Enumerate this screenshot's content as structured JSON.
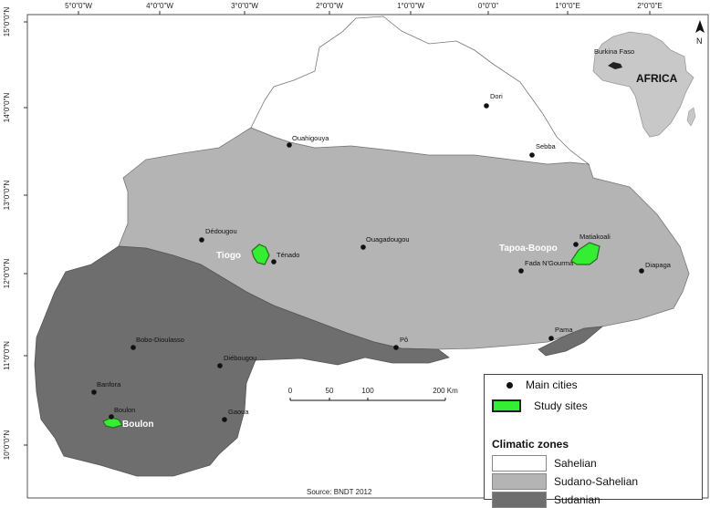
{
  "longitude_ticks": [
    "5°0\"0\"W",
    "4°0\"0\"W",
    "3°0\"0\"W",
    "2°0\"0\"W",
    "1°0\"0\"W",
    "0°0\"0\"",
    "1°0\"0\"E",
    "2°0\"0\"E"
  ],
  "latitude_ticks": [
    "15°0\"0\"N",
    "14°0\"0\"N",
    "13°0\"0\"N",
    "12°0\"0\"N",
    "11°0\"0\"N",
    "10°0\"0\"N"
  ],
  "cities": [
    {
      "name": "Dori"
    },
    {
      "name": "Ouahigouya"
    },
    {
      "name": "Sebba"
    },
    {
      "name": "Dédougou"
    },
    {
      "name": "Ténado"
    },
    {
      "name": "Ouagadougou"
    },
    {
      "name": "Matiakoali"
    },
    {
      "name": "Fada N'Gourma"
    },
    {
      "name": "Diapaga"
    },
    {
      "name": "Bobo-Dioulasso"
    },
    {
      "name": "Diébougou"
    },
    {
      "name": "Pô"
    },
    {
      "name": "Pama"
    },
    {
      "name": "Banfora"
    },
    {
      "name": "Boulon"
    },
    {
      "name": "Gaoua"
    }
  ],
  "study_sites": [
    "Tiogo",
    "Tapoa-Boopo",
    "Boulon"
  ],
  "inset": {
    "country": "Burkina Faso",
    "continent": "AFRICA"
  },
  "north_arrow": "N",
  "scale_bar": {
    "labels": [
      "0",
      "50",
      "100",
      "200 Km"
    ]
  },
  "legend": {
    "main_cities": "Main cities",
    "study_sites": "Study sites",
    "climatic_zones": "Climatic zones",
    "zones": [
      {
        "name": "Sahelian",
        "color": "#ffffff"
      },
      {
        "name": "Sudano-Sahelian",
        "color": "#b4b4b4"
      },
      {
        "name": "Sudanian",
        "color": "#6e6e6e"
      }
    ]
  },
  "source": "Source: BNDT 2012",
  "colors": {
    "study_site": "#33ee33",
    "sahelian": "#ffffff",
    "sudano_sahelian": "#b4b4b4",
    "sudanian": "#6e6e6e"
  }
}
